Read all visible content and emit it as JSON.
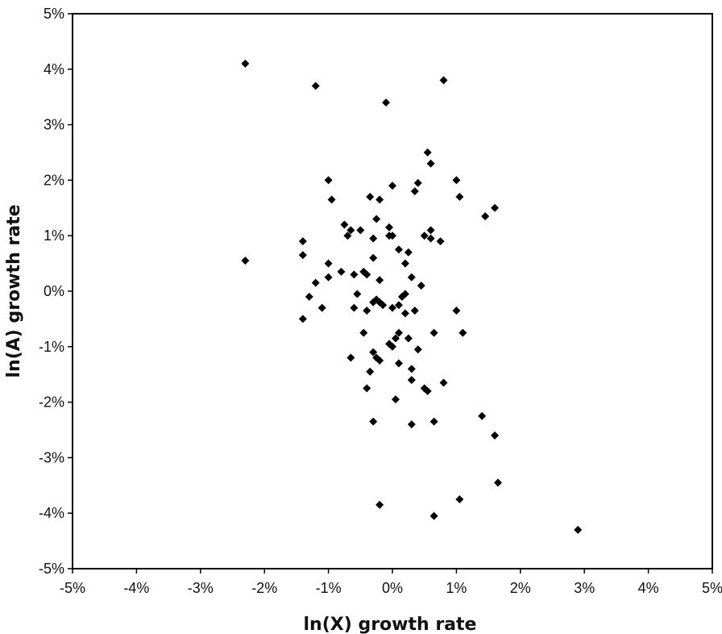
{
  "chart_data": {
    "type": "scatter",
    "title": "",
    "xlabel": "ln(X) growth rate",
    "ylabel": "ln(A) growth rate",
    "xlim": [
      -5,
      5
    ],
    "ylim": [
      -5,
      5
    ],
    "x_ticks": [
      "-5%",
      "-4%",
      "-3%",
      "-2%",
      "-1%",
      "0%",
      "1%",
      "2%",
      "3%",
      "4%",
      "5%"
    ],
    "y_ticks": [
      "5%",
      "4%",
      "3%",
      "2%",
      "1%",
      "0%",
      "-1%",
      "-2%",
      "-3%",
      "-4%",
      "-5%"
    ],
    "grid": false,
    "legend": "none",
    "marker_color": "#000000",
    "marker_shape": "diamond",
    "points": [
      {
        "x": -2.3,
        "y": 4.1
      },
      {
        "x": -1.2,
        "y": 3.7
      },
      {
        "x": 0.8,
        "y": 3.8
      },
      {
        "x": -0.1,
        "y": 3.4
      },
      {
        "x": 0.55,
        "y": 2.5
      },
      {
        "x": 0.6,
        "y": 2.3
      },
      {
        "x": -1.0,
        "y": 2.0
      },
      {
        "x": 0.0,
        "y": 1.9
      },
      {
        "x": 0.4,
        "y": 1.95
      },
      {
        "x": 0.35,
        "y": 1.8
      },
      {
        "x": 1.0,
        "y": 2.0
      },
      {
        "x": 1.05,
        "y": 1.7
      },
      {
        "x": -0.95,
        "y": 1.65
      },
      {
        "x": -0.35,
        "y": 1.7
      },
      {
        "x": -0.2,
        "y": 1.65
      },
      {
        "x": 1.6,
        "y": 1.5
      },
      {
        "x": 1.45,
        "y": 1.35
      },
      {
        "x": -0.25,
        "y": 1.3
      },
      {
        "x": -0.75,
        "y": 1.2
      },
      {
        "x": -0.65,
        "y": 1.1
      },
      {
        "x": -0.7,
        "y": 1.0
      },
      {
        "x": -0.5,
        "y": 1.1
      },
      {
        "x": -0.05,
        "y": 1.15
      },
      {
        "x": -0.05,
        "y": 1.0
      },
      {
        "x": 0.0,
        "y": 1.0
      },
      {
        "x": 0.6,
        "y": 1.1
      },
      {
        "x": 0.5,
        "y": 1.0
      },
      {
        "x": 0.6,
        "y": 0.95
      },
      {
        "x": 0.75,
        "y": 0.9
      },
      {
        "x": -0.3,
        "y": 0.95
      },
      {
        "x": -1.4,
        "y": 0.9
      },
      {
        "x": -2.3,
        "y": 0.55
      },
      {
        "x": -1.4,
        "y": 0.65
      },
      {
        "x": -1.0,
        "y": 0.5
      },
      {
        "x": 0.1,
        "y": 0.75
      },
      {
        "x": 0.25,
        "y": 0.7
      },
      {
        "x": -0.3,
        "y": 0.6
      },
      {
        "x": 0.2,
        "y": 0.5
      },
      {
        "x": -0.6,
        "y": 0.3
      },
      {
        "x": -0.45,
        "y": 0.35
      },
      {
        "x": -0.8,
        "y": 0.35
      },
      {
        "x": -1.0,
        "y": 0.25
      },
      {
        "x": -1.2,
        "y": 0.15
      },
      {
        "x": -0.4,
        "y": 0.3
      },
      {
        "x": -0.2,
        "y": 0.2
      },
      {
        "x": 0.3,
        "y": 0.25
      },
      {
        "x": 0.45,
        "y": 0.1
      },
      {
        "x": -0.55,
        "y": -0.05
      },
      {
        "x": 0.2,
        "y": -0.05
      },
      {
        "x": 0.15,
        "y": -0.1
      },
      {
        "x": -1.3,
        "y": -0.1
      },
      {
        "x": -0.3,
        "y": -0.2
      },
      {
        "x": -0.2,
        "y": -0.2
      },
      {
        "x": -0.15,
        "y": -0.25
      },
      {
        "x": -0.25,
        "y": -0.15
      },
      {
        "x": 0.1,
        "y": -0.25
      },
      {
        "x": 0.0,
        "y": -0.3
      },
      {
        "x": -1.1,
        "y": -0.3
      },
      {
        "x": -0.6,
        "y": -0.3
      },
      {
        "x": -0.4,
        "y": -0.35
      },
      {
        "x": 0.35,
        "y": -0.35
      },
      {
        "x": 0.2,
        "y": -0.4
      },
      {
        "x": 1.0,
        "y": -0.35
      },
      {
        "x": -1.4,
        "y": -0.5
      },
      {
        "x": -0.45,
        "y": -0.75
      },
      {
        "x": 0.1,
        "y": -0.75
      },
      {
        "x": 0.05,
        "y": -0.85
      },
      {
        "x": 0.65,
        "y": -0.75
      },
      {
        "x": 1.1,
        "y": -0.75
      },
      {
        "x": 0.25,
        "y": -0.85
      },
      {
        "x": -0.05,
        "y": -0.95
      },
      {
        "x": 0.0,
        "y": -1.0
      },
      {
        "x": 0.4,
        "y": -1.05
      },
      {
        "x": -0.3,
        "y": -1.1
      },
      {
        "x": -0.25,
        "y": -1.2
      },
      {
        "x": -0.2,
        "y": -1.25
      },
      {
        "x": -0.65,
        "y": -1.2
      },
      {
        "x": 0.1,
        "y": -1.3
      },
      {
        "x": 0.3,
        "y": -1.4
      },
      {
        "x": -0.35,
        "y": -1.45
      },
      {
        "x": 0.3,
        "y": -1.6
      },
      {
        "x": 0.8,
        "y": -1.65
      },
      {
        "x": -0.4,
        "y": -1.75
      },
      {
        "x": 0.5,
        "y": -1.75
      },
      {
        "x": 0.55,
        "y": -1.8
      },
      {
        "x": 0.05,
        "y": -1.95
      },
      {
        "x": -0.3,
        "y": -2.35
      },
      {
        "x": 0.3,
        "y": -2.4
      },
      {
        "x": 0.65,
        "y": -2.35
      },
      {
        "x": 1.4,
        "y": -2.25
      },
      {
        "x": 1.6,
        "y": -2.6
      },
      {
        "x": 1.65,
        "y": -3.45
      },
      {
        "x": 1.05,
        "y": -3.75
      },
      {
        "x": -0.2,
        "y": -3.85
      },
      {
        "x": 0.65,
        "y": -4.05
      },
      {
        "x": 2.9,
        "y": -4.3
      }
    ]
  }
}
